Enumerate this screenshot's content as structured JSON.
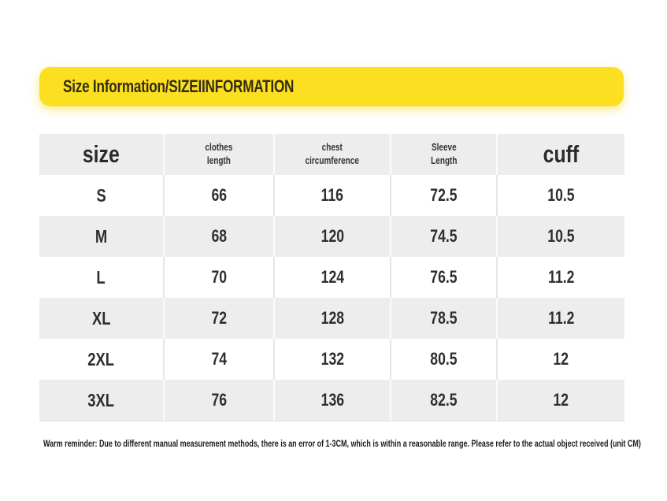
{
  "banner": {
    "title": "Size Information/SIZEIINFORMATION"
  },
  "colors": {
    "banner_yellow": "#FBDF20",
    "banner_text": "#332E13",
    "header_row_gray": "#EDEDED",
    "alt_row_gray": "#EDEDED",
    "table_text": "#2E2E2E"
  },
  "table": {
    "headers": [
      {
        "line1": "size",
        "line2": ""
      },
      {
        "line1": "clothes",
        "line2": "length"
      },
      {
        "line1": "chest",
        "line2": "circumference"
      },
      {
        "line1": "Sleeve",
        "line2": "Length"
      },
      {
        "line1": "cuff",
        "line2": ""
      }
    ],
    "rows": [
      {
        "size": "S",
        "clothes_length": "66",
        "chest_circumference": "116",
        "sleeve_length": "72.5",
        "cuff": "10.5"
      },
      {
        "size": "M",
        "clothes_length": "68",
        "chest_circumference": "120",
        "sleeve_length": "74.5",
        "cuff": "10.5"
      },
      {
        "size": "L",
        "clothes_length": "70",
        "chest_circumference": "124",
        "sleeve_length": "76.5",
        "cuff": "11.2"
      },
      {
        "size": "XL",
        "clothes_length": "72",
        "chest_circumference": "128",
        "sleeve_length": "78.5",
        "cuff": "11.2"
      },
      {
        "size": "2XL",
        "clothes_length": "74",
        "chest_circumference": "132",
        "sleeve_length": "80.5",
        "cuff": "12"
      },
      {
        "size": "3XL",
        "clothes_length": "76",
        "chest_circumference": "136",
        "sleeve_length": "82.5",
        "cuff": "12"
      }
    ]
  },
  "footer": {
    "note": "Warm reminder: Due to different manual measurement methods, there is an error of 1-3CM, which is within a reasonable range. Please refer to the actual object received (unit CM)"
  },
  "chart_data": {
    "type": "table",
    "title": "Size Information/SIZEIINFORMATION",
    "columns": [
      "size",
      "clothes length",
      "chest circumference",
      "Sleeve Length",
      "cuff"
    ],
    "rows": [
      [
        "S",
        66,
        116,
        72.5,
        10.5
      ],
      [
        "M",
        68,
        120,
        74.5,
        10.5
      ],
      [
        "L",
        70,
        124,
        76.5,
        11.2
      ],
      [
        "XL",
        72,
        128,
        78.5,
        11.2
      ],
      [
        "2XL",
        74,
        132,
        80.5,
        12
      ],
      [
        "3XL",
        76,
        136,
        82.5,
        12
      ]
    ],
    "unit": "CM",
    "note": "Warm reminder: Due to different manual measurement methods, there is an error of 1-3CM, which is within a reasonable range. Please refer to the actual object received (unit CM)"
  }
}
